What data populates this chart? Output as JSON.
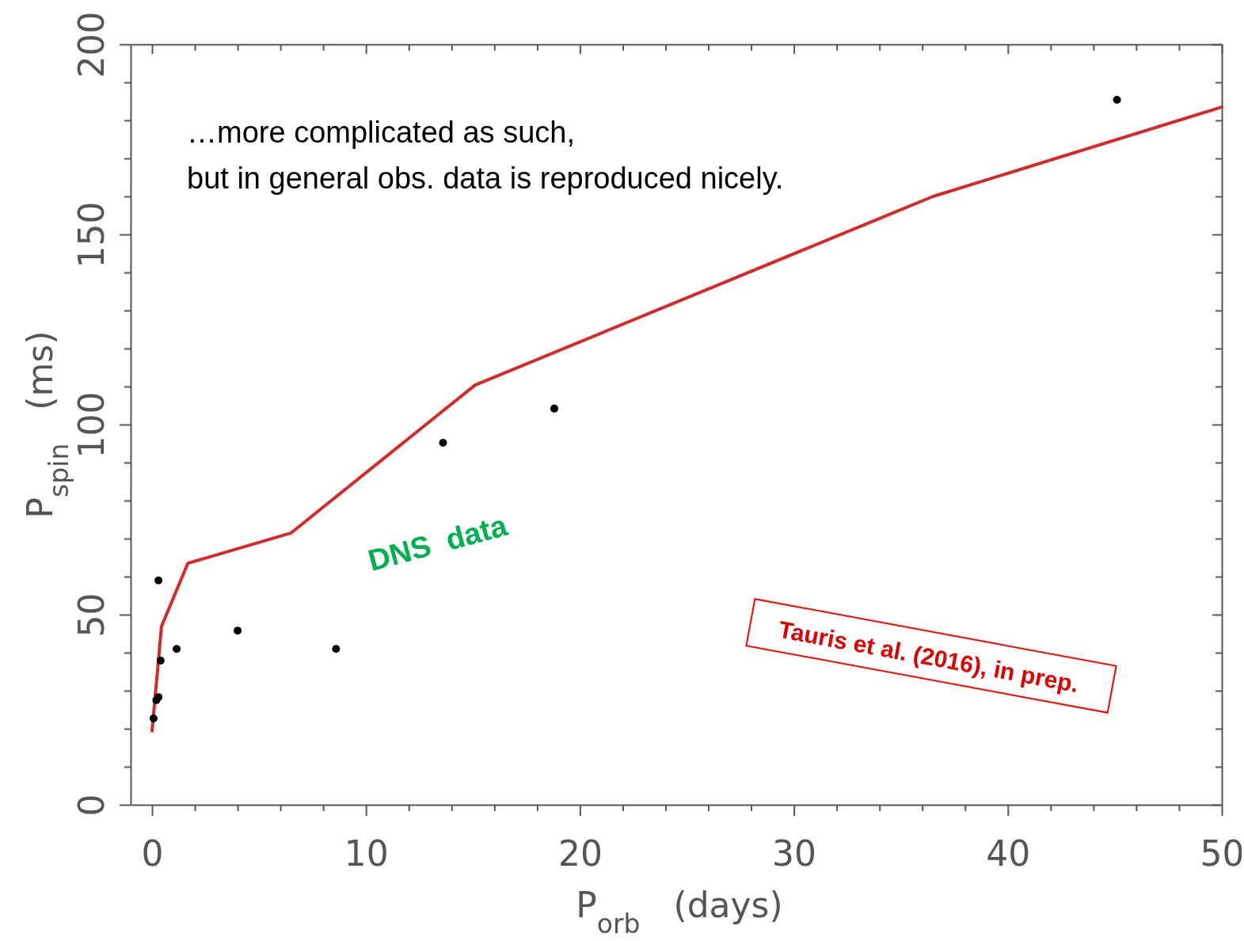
{
  "chart_data": {
    "type": "scatter",
    "xlabel": "P$_{orb}$   (days)",
    "ylabel": "P$_{spin}$   (ms)",
    "xlim": [
      -1,
      50
    ],
    "ylim": [
      0,
      200
    ],
    "xticks": [
      0,
      {
        "value": 2,
        "label": null
      },
      {
        "value": 4,
        "label": null
      },
      {
        "value": 6,
        "label": null
      },
      {
        "value": 8,
        "label": null
      },
      10,
      {
        "value": 12,
        "label": null
      },
      {
        "value": 14,
        "label": null
      },
      {
        "value": 16,
        "label": null
      },
      {
        "value": 18,
        "label": null
      },
      20,
      {
        "value": 22,
        "label": null
      },
      {
        "value": 24,
        "label": null
      },
      {
        "value": 26,
        "label": null
      },
      {
        "value": 28,
        "label": null
      },
      30,
      {
        "value": 32,
        "label": null
      },
      {
        "value": 34,
        "label": null
      },
      {
        "value": 36,
        "label": null
      },
      {
        "value": 38,
        "label": null
      },
      40,
      {
        "value": 42,
        "label": null
      },
      {
        "value": 44,
        "label": null
      },
      {
        "value": 46,
        "label": null
      },
      {
        "value": 48,
        "label": null
      },
      50
    ],
    "yticks": [
      0,
      {
        "value": 10,
        "label": null
      },
      {
        "value": 20,
        "label": null
      },
      {
        "value": 30,
        "label": null
      },
      {
        "value": 40,
        "label": null
      },
      50,
      {
        "value": 60,
        "label": null
      },
      {
        "value": 70,
        "label": null
      },
      {
        "value": 80,
        "label": null
      },
      {
        "value": 90,
        "label": null
      },
      100,
      {
        "value": 110,
        "label": null
      },
      {
        "value": 120,
        "label": null
      },
      {
        "value": 130,
        "label": null
      },
      {
        "value": 140,
        "label": null
      },
      150,
      {
        "value": 160,
        "label": null
      },
      {
        "value": 170,
        "label": null
      },
      {
        "value": 180,
        "label": null
      },
      {
        "value": 190,
        "label": null
      },
      200
    ],
    "grid": false,
    "marker": "circle",
    "series": [
      {
        "color": "#000000",
        "x": [
          0.07,
          0.2,
          0.3,
          0.4,
          0.3,
          1.15,
          4.0,
          8.6,
          13.6,
          18.8,
          45.1
        ],
        "values": [
          22.7,
          27.5,
          28.3,
          37.9,
          59,
          41,
          45.8,
          41,
          95.2,
          104.2,
          185.4
        ]
      },
      {
        "type": "line",
        "color": "#d42a2a",
        "line_style": "solid",
        "marker": "none",
        "x": [
          0,
          0.44,
          1.67,
          6.5,
          15.1,
          36.5,
          50
        ],
        "values": [
          19.4,
          46.9,
          63.5,
          71.5,
          110.4,
          160,
          183.5
        ]
      }
    ],
    "annotations": [
      "…more complicated as such,\nbut in general obs. data is reproduced nicely.",
      "DNS  data",
      "Tauris et al. (2016), in prep."
    ]
  }
}
